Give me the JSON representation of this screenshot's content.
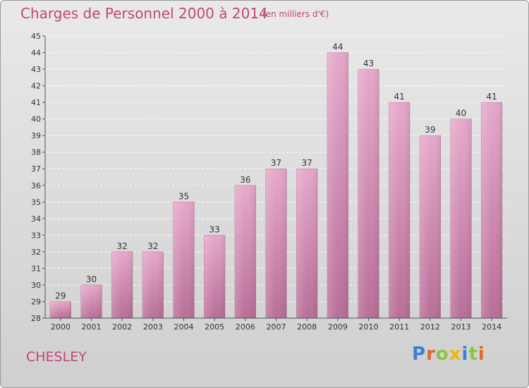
{
  "chart_data": {
    "type": "bar",
    "title": "Charges de Personnel 2000 à 2014",
    "subtitle": "(en milliers d'€)",
    "xlabel": "",
    "ylabel": "",
    "categories": [
      "2000",
      "2001",
      "2002",
      "2003",
      "2004",
      "2005",
      "2006",
      "2007",
      "2008",
      "2009",
      "2010",
      "2011",
      "2012",
      "2013",
      "2014"
    ],
    "values": [
      29,
      30,
      32,
      32,
      35,
      33,
      36,
      37,
      37,
      44,
      43,
      41,
      39,
      40,
      41
    ],
    "ylim": [
      28,
      45
    ],
    "yticks": [
      28,
      29,
      30,
      31,
      32,
      33,
      34,
      35,
      36,
      37,
      38,
      39,
      40,
      41,
      42,
      43,
      44,
      45
    ],
    "grid": true,
    "bar_color": "#d98fb8"
  },
  "footer": {
    "commune": "CHESLEY",
    "logo_letters": [
      {
        "ch": "P",
        "color": "#3a7fd5"
      },
      {
        "ch": "r",
        "color": "#e2672a"
      },
      {
        "ch": "o",
        "color": "#8cc63f"
      },
      {
        "ch": "x",
        "color": "#f1b800"
      },
      {
        "ch": "i",
        "color": "#3a7fd5"
      },
      {
        "ch": "t",
        "color": "#8cc63f"
      },
      {
        "ch": "i",
        "color": "#e2672a"
      }
    ]
  }
}
